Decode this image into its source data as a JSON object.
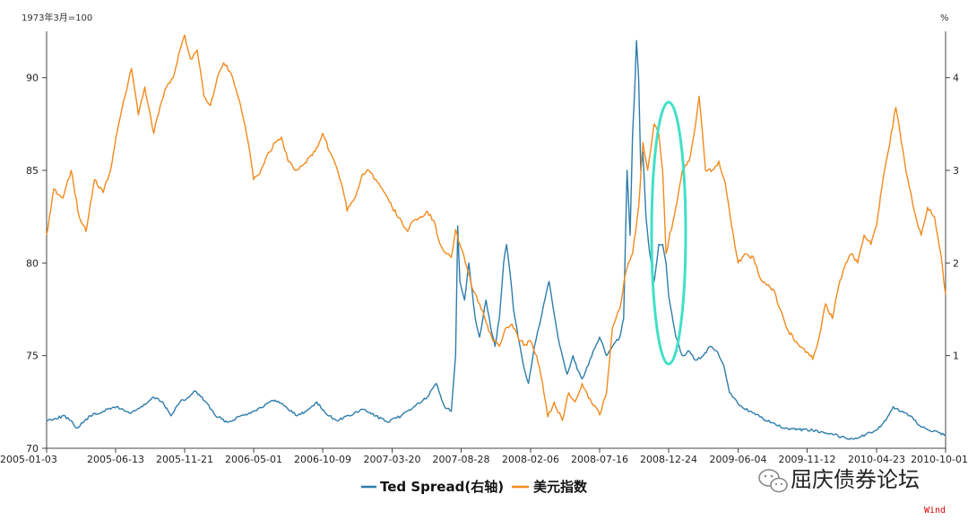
{
  "chart_data": {
    "type": "line",
    "left_axis_unit": "1973年3月=100",
    "right_axis_unit": "%",
    "y_left": {
      "min": 70,
      "max": 92.5,
      "ticks": [
        70,
        75,
        80,
        85,
        90
      ]
    },
    "y_right": {
      "min": 0,
      "max": 4.5,
      "ticks": [
        1,
        2,
        3,
        4
      ]
    },
    "x_range": [
      "2005-01-03",
      "2010-10-01"
    ],
    "x_ticks": [
      "2005-01-03",
      "2005-06-13",
      "2005-11-21",
      "2006-05-01",
      "2006-10-09",
      "2007-03-20",
      "2007-08-28",
      "2008-02-06",
      "2008-07-16",
      "2008-12-24",
      "2009-06-04",
      "2009-11-12",
      "2010-04-23",
      "2010-10-01"
    ],
    "series": [
      {
        "name": "Ted Spread(右轴)",
        "axis": "right",
        "color": "#2e7dab",
        "points": [
          [
            "2005-01-03",
            0.3
          ],
          [
            "2005-02-15",
            0.35
          ],
          [
            "2005-03-15",
            0.22
          ],
          [
            "2005-04-15",
            0.35
          ],
          [
            "2005-05-15",
            0.4
          ],
          [
            "2005-06-15",
            0.45
          ],
          [
            "2005-07-15",
            0.38
          ],
          [
            "2005-08-15",
            0.45
          ],
          [
            "2005-09-10",
            0.55
          ],
          [
            "2005-10-01",
            0.5
          ],
          [
            "2005-10-20",
            0.35
          ],
          [
            "2005-11-10",
            0.5
          ],
          [
            "2005-12-01",
            0.55
          ],
          [
            "2005-12-15",
            0.62
          ],
          [
            "2006-01-10",
            0.5
          ],
          [
            "2006-02-01",
            0.35
          ],
          [
            "2006-03-01",
            0.28
          ],
          [
            "2006-04-01",
            0.35
          ],
          [
            "2006-05-01",
            0.4
          ],
          [
            "2006-06-01",
            0.48
          ],
          [
            "2006-06-20",
            0.52
          ],
          [
            "2006-07-15",
            0.45
          ],
          [
            "2006-08-10",
            0.35
          ],
          [
            "2006-09-01",
            0.4
          ],
          [
            "2006-09-25",
            0.5
          ],
          [
            "2006-10-15",
            0.38
          ],
          [
            "2006-11-10",
            0.3
          ],
          [
            "2006-12-10",
            0.35
          ],
          [
            "2007-01-10",
            0.42
          ],
          [
            "2007-02-10",
            0.35
          ],
          [
            "2007-03-10",
            0.28
          ],
          [
            "2007-04-10",
            0.35
          ],
          [
            "2007-05-10",
            0.45
          ],
          [
            "2007-06-10",
            0.55
          ],
          [
            "2007-07-01",
            0.7
          ],
          [
            "2007-07-20",
            0.45
          ],
          [
            "2007-08-05",
            0.4
          ],
          [
            "2007-08-15",
            1.0
          ],
          [
            "2007-08-20",
            2.4
          ],
          [
            "2007-08-25",
            1.8
          ],
          [
            "2007-09-05",
            1.6
          ],
          [
            "2007-09-15",
            2.0
          ],
          [
            "2007-09-30",
            1.4
          ],
          [
            "2007-10-10",
            1.2
          ],
          [
            "2007-10-25",
            1.6
          ],
          [
            "2007-11-05",
            1.3
          ],
          [
            "2007-11-15",
            1.1
          ],
          [
            "2007-11-25",
            1.4
          ],
          [
            "2007-12-05",
            2.0
          ],
          [
            "2007-12-12",
            2.2
          ],
          [
            "2007-12-20",
            1.9
          ],
          [
            "2007-12-28",
            1.5
          ],
          [
            "2008-01-08",
            1.2
          ],
          [
            "2008-01-20",
            0.9
          ],
          [
            "2008-02-01",
            0.7
          ],
          [
            "2008-02-15",
            1.1
          ],
          [
            "2008-03-01",
            1.4
          ],
          [
            "2008-03-10",
            1.6
          ],
          [
            "2008-03-20",
            1.8
          ],
          [
            "2008-03-30",
            1.5
          ],
          [
            "2008-04-10",
            1.2
          ],
          [
            "2008-04-20",
            1.0
          ],
          [
            "2008-05-01",
            0.8
          ],
          [
            "2008-05-15",
            1.0
          ],
          [
            "2008-05-25",
            0.85
          ],
          [
            "2008-06-05",
            0.75
          ],
          [
            "2008-06-20",
            0.9
          ],
          [
            "2008-07-01",
            1.05
          ],
          [
            "2008-07-16",
            1.2
          ],
          [
            "2008-08-01",
            1.0
          ],
          [
            "2008-08-15",
            1.1
          ],
          [
            "2008-09-01",
            1.2
          ],
          [
            "2008-09-10",
            1.4
          ],
          [
            "2008-09-18",
            3.0
          ],
          [
            "2008-09-25",
            2.3
          ],
          [
            "2008-10-01",
            3.4
          ],
          [
            "2008-10-07",
            4.0
          ],
          [
            "2008-10-10",
            4.4
          ],
          [
            "2008-10-15",
            4.0
          ],
          [
            "2008-10-20",
            3.0
          ],
          [
            "2008-10-25",
            3.2
          ],
          [
            "2008-11-01",
            2.5
          ],
          [
            "2008-11-10",
            2.1
          ],
          [
            "2008-11-20",
            1.8
          ],
          [
            "2008-12-01",
            2.2
          ],
          [
            "2008-12-10",
            2.2
          ],
          [
            "2008-12-18",
            2.0
          ],
          [
            "2008-12-24",
            1.65
          ],
          [
            "2009-01-10",
            1.2
          ],
          [
            "2009-01-25",
            1.0
          ],
          [
            "2009-02-10",
            1.05
          ],
          [
            "2009-02-25",
            0.95
          ],
          [
            "2009-03-15",
            1.0
          ],
          [
            "2009-04-01",
            1.1
          ],
          [
            "2009-04-15",
            1.05
          ],
          [
            "2009-05-01",
            0.9
          ],
          [
            "2009-05-15",
            0.6
          ],
          [
            "2009-06-04",
            0.48
          ],
          [
            "2009-07-01",
            0.4
          ],
          [
            "2009-08-01",
            0.32
          ],
          [
            "2009-09-01",
            0.25
          ],
          [
            "2009-10-01",
            0.2
          ],
          [
            "2009-11-12",
            0.2
          ],
          [
            "2009-12-15",
            0.18
          ],
          [
            "2010-01-15",
            0.15
          ],
          [
            "2010-02-15",
            0.1
          ],
          [
            "2010-03-15",
            0.12
          ],
          [
            "2010-04-23",
            0.2
          ],
          [
            "2010-05-15",
            0.3
          ],
          [
            "2010-06-01",
            0.45
          ],
          [
            "2010-06-15",
            0.4
          ],
          [
            "2010-07-10",
            0.35
          ],
          [
            "2010-08-01",
            0.25
          ],
          [
            "2010-09-01",
            0.18
          ],
          [
            "2010-10-01",
            0.15
          ]
        ]
      },
      {
        "name": "美元指数",
        "axis": "left",
        "color": "#f28a1d",
        "points": [
          [
            "2005-01-03",
            81.5
          ],
          [
            "2005-01-20",
            84.0
          ],
          [
            "2005-02-10",
            83.5
          ],
          [
            "2005-03-01",
            85.0
          ],
          [
            "2005-03-20",
            82.5
          ],
          [
            "2005-04-05",
            81.7
          ],
          [
            "2005-04-25",
            84.5
          ],
          [
            "2005-05-15",
            83.8
          ],
          [
            "2005-06-01",
            85.0
          ],
          [
            "2005-06-20",
            87.5
          ],
          [
            "2005-07-05",
            89.0
          ],
          [
            "2005-07-20",
            90.5
          ],
          [
            "2005-08-05",
            88.0
          ],
          [
            "2005-08-20",
            89.5
          ],
          [
            "2005-09-10",
            87.0
          ],
          [
            "2005-09-25",
            88.5
          ],
          [
            "2005-10-10",
            89.5
          ],
          [
            "2005-10-25",
            90.0
          ],
          [
            "2005-11-10",
            91.5
          ],
          [
            "2005-11-21",
            92.3
          ],
          [
            "2005-12-05",
            91.0
          ],
          [
            "2005-12-20",
            91.5
          ],
          [
            "2006-01-05",
            89.0
          ],
          [
            "2006-01-20",
            88.5
          ],
          [
            "2006-02-05",
            90.0
          ],
          [
            "2006-02-20",
            90.8
          ],
          [
            "2006-03-10",
            90.2
          ],
          [
            "2006-03-25",
            89.0
          ],
          [
            "2006-04-10",
            87.5
          ],
          [
            "2006-04-25",
            85.5
          ],
          [
            "2006-05-01",
            84.5
          ],
          [
            "2006-05-15",
            84.8
          ],
          [
            "2006-06-01",
            85.8
          ],
          [
            "2006-06-20",
            86.5
          ],
          [
            "2006-07-05",
            86.8
          ],
          [
            "2006-07-20",
            85.5
          ],
          [
            "2006-08-05",
            85.0
          ],
          [
            "2006-08-25",
            85.3
          ],
          [
            "2006-09-15",
            85.8
          ],
          [
            "2006-10-01",
            86.5
          ],
          [
            "2006-10-09",
            87.0
          ],
          [
            "2006-10-25",
            86.0
          ],
          [
            "2006-11-10",
            85.2
          ],
          [
            "2006-11-25",
            84.0
          ],
          [
            "2006-12-05",
            82.8
          ],
          [
            "2006-12-25",
            83.6
          ],
          [
            "2007-01-10",
            84.8
          ],
          [
            "2007-01-25",
            85.0
          ],
          [
            "2007-02-10",
            84.5
          ],
          [
            "2007-02-25",
            84.0
          ],
          [
            "2007-03-10",
            83.5
          ],
          [
            "2007-03-20",
            83.0
          ],
          [
            "2007-04-10",
            82.3
          ],
          [
            "2007-04-25",
            81.7
          ],
          [
            "2007-05-10",
            82.3
          ],
          [
            "2007-05-25",
            82.5
          ],
          [
            "2007-06-10",
            82.8
          ],
          [
            "2007-06-25",
            82.3
          ],
          [
            "2007-07-10",
            81.0
          ],
          [
            "2007-07-25",
            80.5
          ],
          [
            "2007-08-05",
            80.3
          ],
          [
            "2007-08-15",
            81.8
          ],
          [
            "2007-08-28",
            80.8
          ],
          [
            "2007-09-10",
            79.8
          ],
          [
            "2007-09-25",
            78.5
          ],
          [
            "2007-10-10",
            77.8
          ],
          [
            "2007-10-25",
            76.8
          ],
          [
            "2007-11-10",
            75.8
          ],
          [
            "2007-11-25",
            75.5
          ],
          [
            "2007-12-10",
            76.5
          ],
          [
            "2007-12-25",
            76.7
          ],
          [
            "2008-01-10",
            75.8
          ],
          [
            "2008-01-25",
            75.6
          ],
          [
            "2008-02-06",
            75.8
          ],
          [
            "2008-02-20",
            75.0
          ],
          [
            "2008-03-05",
            73.5
          ],
          [
            "2008-03-17",
            71.7
          ],
          [
            "2008-04-01",
            72.5
          ],
          [
            "2008-04-20",
            71.5
          ],
          [
            "2008-05-05",
            73.0
          ],
          [
            "2008-05-20",
            72.5
          ],
          [
            "2008-06-05",
            73.5
          ],
          [
            "2008-06-20",
            72.7
          ],
          [
            "2008-07-05",
            72.3
          ],
          [
            "2008-07-16",
            71.8
          ],
          [
            "2008-08-01",
            73.0
          ],
          [
            "2008-08-15",
            76.5
          ],
          [
            "2008-09-01",
            77.5
          ],
          [
            "2008-09-15",
            79.5
          ],
          [
            "2008-10-01",
            80.5
          ],
          [
            "2008-10-15",
            83.0
          ],
          [
            "2008-10-25",
            86.5
          ],
          [
            "2008-11-05",
            85.0
          ],
          [
            "2008-11-20",
            87.5
          ],
          [
            "2008-12-01",
            87.0
          ],
          [
            "2008-12-10",
            85.0
          ],
          [
            "2008-12-18",
            80.5
          ],
          [
            "2008-12-24",
            81.2
          ],
          [
            "2009-01-10",
            83.0
          ],
          [
            "2009-01-25",
            85.0
          ],
          [
            "2009-02-10",
            85.5
          ],
          [
            "2009-02-25",
            87.5
          ],
          [
            "2009-03-05",
            89.0
          ],
          [
            "2009-03-20",
            85.0
          ],
          [
            "2009-04-05",
            85.0
          ],
          [
            "2009-04-20",
            85.5
          ],
          [
            "2009-05-05",
            84.3
          ],
          [
            "2009-05-20",
            82.0
          ],
          [
            "2009-06-04",
            80.0
          ],
          [
            "2009-06-20",
            80.5
          ],
          [
            "2009-07-10",
            80.3
          ],
          [
            "2009-07-25",
            79.2
          ],
          [
            "2009-08-10",
            78.8
          ],
          [
            "2009-08-25",
            78.6
          ],
          [
            "2009-09-10",
            77.5
          ],
          [
            "2009-09-25",
            76.5
          ],
          [
            "2009-10-10",
            76.0
          ],
          [
            "2009-10-25",
            75.5
          ],
          [
            "2009-11-12",
            75.2
          ],
          [
            "2009-11-25",
            74.8
          ],
          [
            "2009-12-10",
            76.0
          ],
          [
            "2009-12-25",
            77.8
          ],
          [
            "2010-01-10",
            77.0
          ],
          [
            "2010-01-25",
            78.8
          ],
          [
            "2010-02-10",
            80.0
          ],
          [
            "2010-02-25",
            80.5
          ],
          [
            "2010-03-10",
            80.0
          ],
          [
            "2010-03-25",
            81.5
          ],
          [
            "2010-04-10",
            81.0
          ],
          [
            "2010-04-23",
            82.0
          ],
          [
            "2010-05-05",
            84.0
          ],
          [
            "2010-05-20",
            86.0
          ],
          [
            "2010-06-07",
            88.4
          ],
          [
            "2010-06-20",
            86.5
          ],
          [
            "2010-07-05",
            84.5
          ],
          [
            "2010-07-20",
            82.8
          ],
          [
            "2010-08-05",
            81.5
          ],
          [
            "2010-08-20",
            83.0
          ],
          [
            "2010-09-05",
            82.5
          ],
          [
            "2010-09-20",
            80.5
          ],
          [
            "2010-10-01",
            78.3
          ]
        ]
      }
    ],
    "annotation": {
      "type": "ellipse",
      "color": "#40e0c8",
      "center_x": "2008-12-24"
    },
    "grid": false,
    "legend": "bottom-center"
  },
  "legend": {
    "ted_label": "Ted Spread(右轴)",
    "usd_label": "美元指数"
  },
  "watermark": {
    "text": "屈庆债券论坛"
  },
  "source": {
    "text": "Wind"
  }
}
